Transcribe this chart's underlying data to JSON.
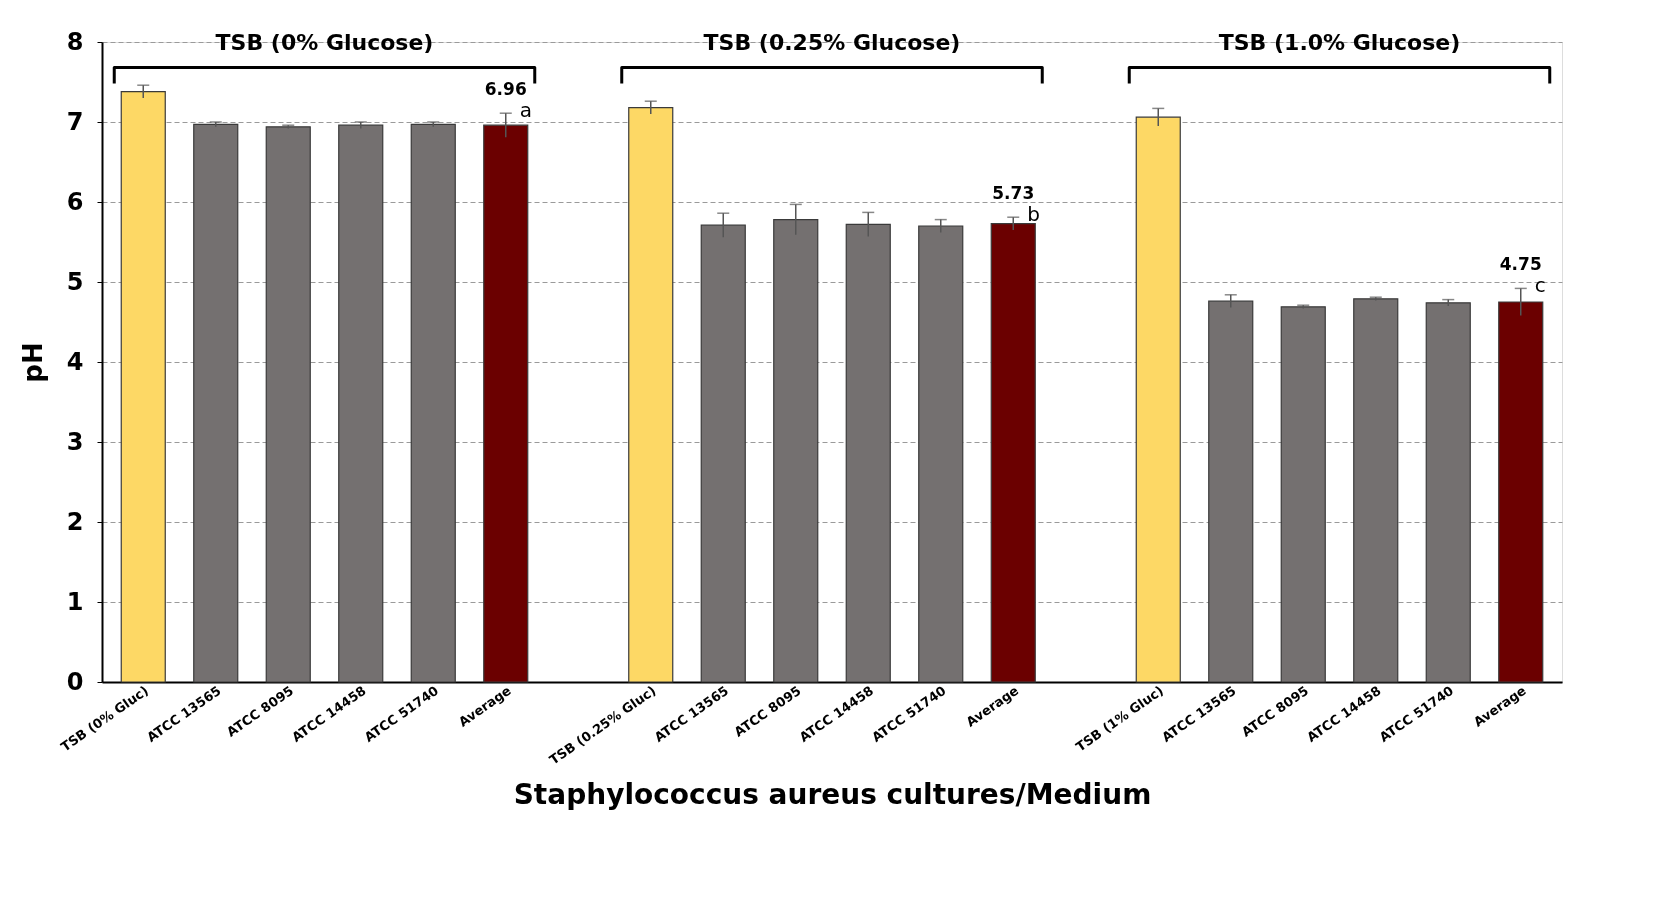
{
  "chart_data": {
    "type": "bar",
    "ylabel": "pH",
    "xlabel": "Staphylococcus aureus cultures/Medium",
    "categories": [
      "TSB (0% Gluc)",
      "ATCC 13565",
      "ATCC 8095",
      "ATCC 14458",
      "ATCC 51740",
      "Average",
      null,
      "TSB (0.25% Gluc)",
      "ATCC 13565",
      "ATCC 8095",
      "ATCC 14458",
      "ATCC 51740",
      "Average",
      null,
      "TSB (1% Gluc)",
      "ATCC 13565",
      "ATCC 8095",
      "ATCC 14458",
      "ATCC 51740",
      "Average"
    ],
    "values": [
      7.38,
      6.97,
      6.94,
      6.96,
      6.97,
      6.96,
      null,
      7.18,
      5.71,
      5.78,
      5.72,
      5.7,
      5.73,
      null,
      7.06,
      4.76,
      4.69,
      4.79,
      4.74,
      4.75
    ],
    "errors": [
      0.08,
      0.03,
      0.02,
      0.04,
      0.03,
      0.15,
      null,
      0.08,
      0.15,
      0.19,
      0.15,
      0.08,
      0.08,
      null,
      0.11,
      0.08,
      0.02,
      0.02,
      0.04,
      0.17
    ],
    "colors": [
      "#fdd865",
      "#747070",
      "#747070",
      "#747070",
      "#747070",
      "#6b0000",
      null,
      "#fdd865",
      "#747070",
      "#747070",
      "#747070",
      "#747070",
      "#6b0000",
      null,
      "#fdd865",
      "#747070",
      "#747070",
      "#747070",
      "#747070",
      "#6b0000"
    ],
    "value_labels": [
      null,
      null,
      null,
      null,
      null,
      "6.96",
      null,
      null,
      null,
      null,
      null,
      null,
      "5.73",
      null,
      null,
      null,
      null,
      null,
      null,
      "4.75"
    ],
    "annotations": [
      "TSB (0% Glucose)",
      "TSB (0.25% Glucose)",
      "TSB (1.0% Glucose)",
      "a",
      "b",
      "c"
    ],
    "ylim": [
      0,
      8
    ],
    "yticks": [
      0,
      1,
      2,
      3,
      4,
      5,
      6,
      7,
      8
    ],
    "grid": "y"
  }
}
